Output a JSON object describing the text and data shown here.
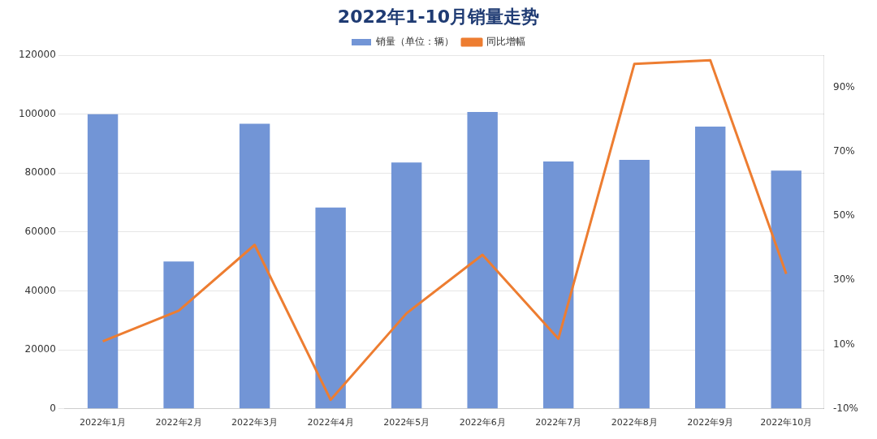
{
  "chart_data": {
    "type": "bar",
    "title": "2022年1-10月销量走势",
    "categories": [
      "2022年1月",
      "2022年2月",
      "2022年3月",
      "2022年4月",
      "2022年5月",
      "2022年6月",
      "2022年7月",
      "2022年8月",
      "2022年9月",
      "2022年10月"
    ],
    "series": [
      {
        "name": "销量（单位：辆）",
        "color": "#7295d6",
        "values": [
          100000,
          50000,
          96700,
          68300,
          83600,
          100700,
          83900,
          84500,
          95800,
          80800
        ]
      },
      {
        "name": "同比增幅",
        "type": "line",
        "axis": "y2",
        "color": "#ed7d31",
        "values": [
          11,
          20.5,
          41,
          -7.2,
          19.7,
          37.9,
          11.8,
          97.3,
          98.4,
          32
        ]
      }
    ],
    "ylim": [
      0,
      120000
    ],
    "yticks": [
      0,
      20000,
      40000,
      60000,
      80000,
      100000,
      120000
    ],
    "y2lim": [
      -10,
      100
    ],
    "y2ticks": [
      {
        "value": -10,
        "label": "-10%"
      },
      {
        "value": 10,
        "label": "10%"
      },
      {
        "value": 30,
        "label": "30%"
      },
      {
        "value": 50,
        "label": "50%"
      },
      {
        "value": 70,
        "label": "70%"
      },
      {
        "value": 90,
        "label": "90%"
      }
    ],
    "grid": "y",
    "legend": "top",
    "marker": "none",
    "line_style": "solid"
  }
}
